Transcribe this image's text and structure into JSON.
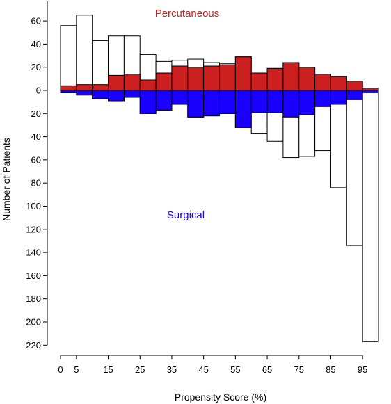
{
  "chart_data": {
    "type": "bar",
    "title": "",
    "xlabel": "Propensity Score (%)",
    "ylabel": "Number of Patients",
    "x_tick_labels": [
      "0",
      "5",
      "15",
      "25",
      "35",
      "45",
      "55",
      "65",
      "75",
      "85",
      "95"
    ],
    "x_tick_values": [
      0,
      5,
      15,
      25,
      35,
      45,
      55,
      65,
      75,
      85,
      95
    ],
    "xlim": [
      0,
      100
    ],
    "y_tick_labels": [
      "60",
      "40",
      "20",
      "0",
      "20",
      "40",
      "60",
      "80",
      "100",
      "120",
      "140",
      "160",
      "180",
      "200",
      "220"
    ],
    "y_tick_values": [
      60,
      40,
      20,
      0,
      -20,
      -40,
      -60,
      -80,
      -100,
      -120,
      -140,
      -160,
      -180,
      -200,
      -220
    ],
    "ylim": [
      -225,
      70
    ],
    "bin_width": 5,
    "bins_start": [
      0,
      5,
      10,
      15,
      20,
      25,
      30,
      35,
      40,
      45,
      50,
      55,
      60,
      65,
      70,
      75,
      80,
      85,
      90,
      95
    ],
    "group_labels": {
      "top": "Percutaneous",
      "bottom": "Surgical"
    },
    "colors": {
      "percutaneous": "#cc1f1f",
      "surgical": "#1a00ff",
      "unmatched": "#ffffff",
      "outline": "#000000",
      "top_label": "#cc1f1f",
      "bottom_label": "#1a00ff"
    },
    "series": [
      {
        "name": "Percutaneous",
        "side": "top",
        "total": [
          56,
          65,
          43,
          47,
          47,
          31,
          25,
          26,
          27,
          24,
          23,
          29,
          15,
          19,
          24,
          20,
          14,
          12,
          8,
          2
        ],
        "matched": [
          4,
          5,
          5,
          13,
          14,
          9,
          15,
          21,
          20,
          21,
          22,
          29,
          15,
          19,
          24,
          20,
          14,
          12,
          8,
          2
        ]
      },
      {
        "name": "Surgical",
        "side": "bottom",
        "total": [
          2,
          4,
          7,
          9,
          6,
          20,
          17,
          12,
          23,
          22,
          20,
          32,
          37,
          44,
          58,
          57,
          52,
          84,
          134,
          217
        ],
        "matched": [
          2,
          4,
          7,
          9,
          6,
          20,
          17,
          12,
          23,
          22,
          20,
          32,
          19,
          19,
          23,
          21,
          14,
          12,
          8,
          2
        ]
      }
    ]
  }
}
